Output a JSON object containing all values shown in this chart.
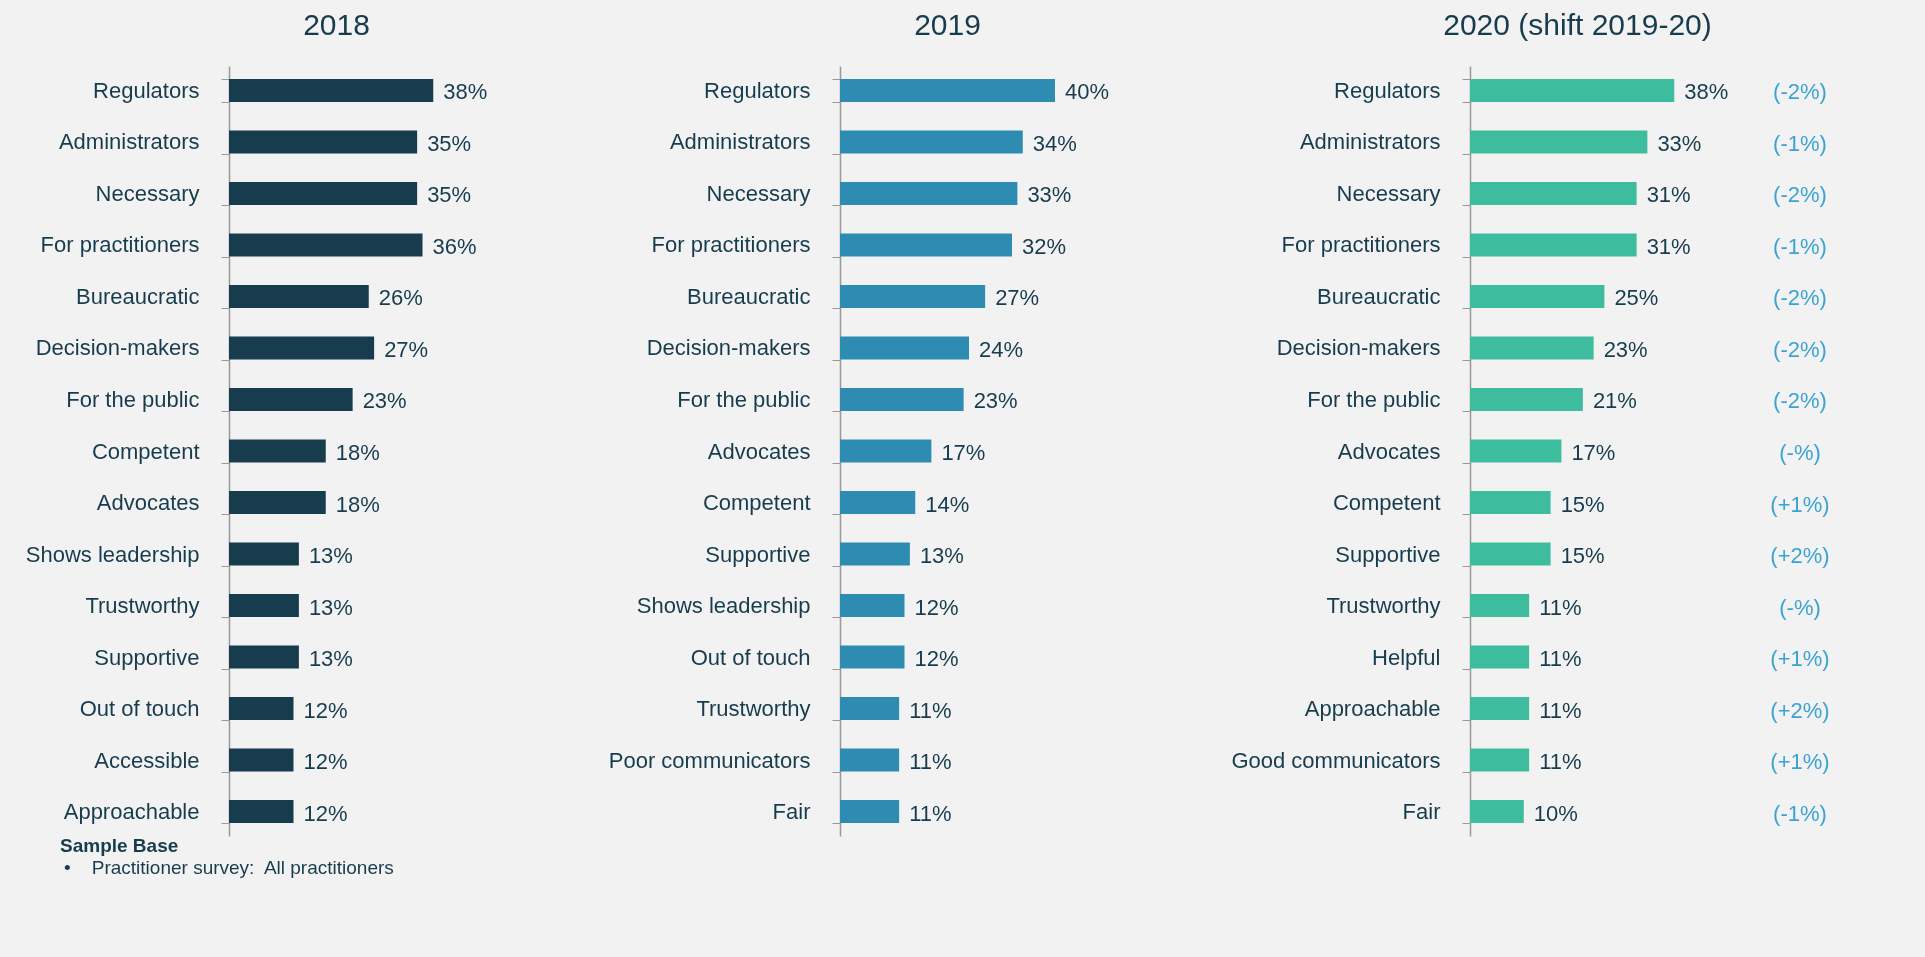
{
  "chart_data": [
    {
      "type": "bar",
      "orientation": "horizontal",
      "title": "2018",
      "categories": [
        "Regulators",
        "Administrators",
        "Necessary",
        "For practitioners",
        "Bureaucratic",
        "Decision-makers",
        "For the public",
        "Competent",
        "Advocates",
        "Shows leadership",
        "Trustworthy",
        "Supportive",
        "Out of touch",
        "Accessible",
        "Approachable"
      ],
      "values": [
        38,
        35,
        35,
        36,
        26,
        27,
        23,
        18,
        18,
        13,
        13,
        13,
        12,
        12,
        12
      ],
      "value_labels": [
        "38%",
        "35%",
        "35%",
        "36%",
        "26%",
        "27%",
        "23%",
        "18%",
        "18%",
        "13%",
        "13%",
        "13%",
        "12%",
        "12%",
        "12%"
      ],
      "color": "#173c4e",
      "annotations": [
        "Sample Base",
        "•    Practitioner survey:  All practitioners"
      ]
    },
    {
      "type": "bar",
      "orientation": "horizontal",
      "title": "2019",
      "categories": [
        "Regulators",
        "Administrators",
        "Necessary",
        "For practitioners",
        "Bureaucratic",
        "Decision-makers",
        "For the public",
        "Advocates",
        "Competent",
        "Supportive",
        "Shows leadership",
        "Out of touch",
        "Trustworthy",
        "Poor communicators",
        "Fair"
      ],
      "values": [
        40,
        34,
        33,
        32,
        27,
        24,
        23,
        17,
        14,
        13,
        12,
        12,
        11,
        11,
        11
      ],
      "value_labels": [
        "40%",
        "34%",
        "33%",
        "32%",
        "27%",
        "24%",
        "23%",
        "17%",
        "14%",
        "13%",
        "12%",
        "12%",
        "11%",
        "11%",
        "11%"
      ],
      "color": "#2e8bb2"
    },
    {
      "type": "bar",
      "orientation": "horizontal",
      "title": "2020 (shift 2019-20)",
      "categories": [
        "Regulators",
        "Administrators",
        "Necessary",
        "For practitioners",
        "Bureaucratic",
        "Decision-makers",
        "For the public",
        "Advocates",
        "Competent",
        "Supportive",
        "Trustworthy",
        "Helpful",
        "Approachable",
        "Good communicators",
        "Fair"
      ],
      "values": [
        38,
        33,
        31,
        31,
        25,
        23,
        21,
        17,
        15,
        15,
        11,
        11,
        11,
        11,
        10
      ],
      "value_labels": [
        "38%",
        "33%",
        "31%",
        "31%",
        "25%",
        "23%",
        "21%",
        "17%",
        "15%",
        "15%",
        "11%",
        "11%",
        "11%",
        "11%",
        "10%"
      ],
      "color": "#3ebd9e",
      "annotations": [
        "(-2%)",
        "(-1%)",
        "(-2%)",
        "(-1%)",
        "(-2%)",
        "(-2%)",
        "(-2%)",
        "(-%)",
        "(+1%)",
        "(+2%)",
        "(-%)",
        "(+1%)",
        "(+2%)",
        "(+1%)",
        "(-1%)"
      ]
    }
  ]
}
